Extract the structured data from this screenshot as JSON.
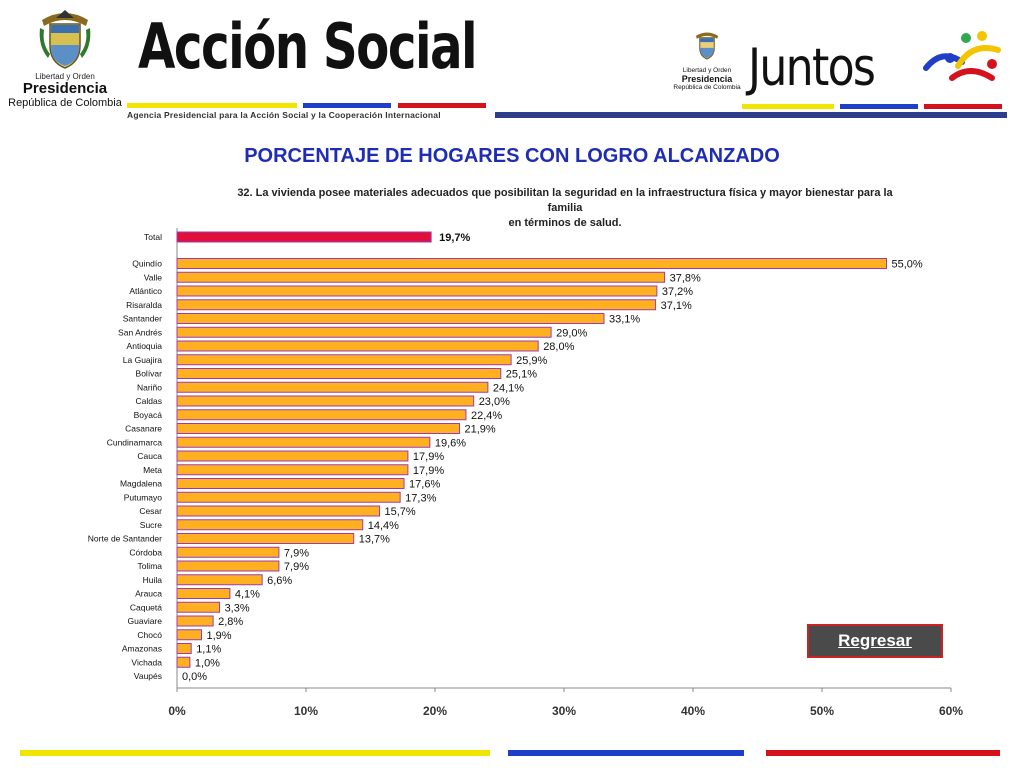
{
  "header": {
    "crest_caption": "Libertad y Orden",
    "presidencia": "Presidencia",
    "republica": "República de Colombia",
    "accion_social": "Acción Social",
    "agency_subtitle": "Agencia Presidencial para la Acción Social y la Cooperación Internacional",
    "juntos_crest_caption": "Libertad y Orden",
    "juntos_presidencia": "Presidencia",
    "juntos_republica": "República de Colombia",
    "juntos": "Juntos"
  },
  "colors": {
    "yellow": "#f2e600",
    "blue": "#1f3fc9",
    "red": "#d4121e",
    "bar_fill": "#ffb020",
    "bar_border": "#9b3db0",
    "total_fill": "#e0103a",
    "title_blue": "#1f2db5"
  },
  "page": {
    "title": "PORCENTAJE DE HOGARES CON LOGRO ALCANZADO",
    "chart_subtitle_line1": "32. La vivienda posee materiales adecuados que posibilitan la seguridad en la infraestructura física y mayor bienestar para la familia",
    "chart_subtitle_line2": "en términos de salud.",
    "regresar_label": "Regresar"
  },
  "chart_data": {
    "type": "bar",
    "orientation": "horizontal",
    "title": "32. La vivienda posee materiales adecuados que posibilitan la seguridad en la infraestructura física y mayor bienestar para la familia en términos de salud.",
    "xlim": [
      0,
      60
    ],
    "xticks": [
      "0%",
      "10%",
      "20%",
      "30%",
      "40%",
      "50%",
      "60%"
    ],
    "grid": false,
    "total": {
      "label": "Total",
      "value": 19.7,
      "value_label": "19,7%"
    },
    "categories": [
      "Quindío",
      "Valle",
      "Atlántico",
      "Risaralda",
      "Santander",
      "San Andrés",
      "Antioquia",
      "La Guajira",
      "Bolívar",
      "Nariño",
      "Caldas",
      "Boyacá",
      "Casanare",
      "Cundinamarca",
      "Cauca",
      "Meta",
      "Magdalena",
      "Putumayo",
      "Cesar",
      "Sucre",
      "Norte de Santander",
      "Córdoba",
      "Tolima",
      "Huila",
      "Arauca",
      "Caquetá",
      "Guaviare",
      "Chocó",
      "Amazonas",
      "Vichada",
      "Vaupés"
    ],
    "values": [
      55.0,
      37.8,
      37.2,
      37.1,
      33.1,
      29.0,
      28.0,
      25.9,
      25.1,
      24.1,
      23.0,
      22.4,
      21.9,
      19.6,
      17.9,
      17.9,
      17.6,
      17.3,
      15.7,
      14.4,
      13.7,
      7.9,
      7.9,
      6.6,
      4.1,
      3.3,
      2.8,
      1.9,
      1.1,
      1.0,
      0.0
    ],
    "value_labels": [
      "55,0%",
      "37,8%",
      "37,2%",
      "37,1%",
      "33,1%",
      "29,0%",
      "28,0%",
      "25,9%",
      "25,1%",
      "24,1%",
      "23,0%",
      "22,4%",
      "21,9%",
      "19,6%",
      "17,9%",
      "17,9%",
      "17,6%",
      "17,3%",
      "15,7%",
      "14,4%",
      "13,7%",
      "7,9%",
      "7,9%",
      "6,6%",
      "4,1%",
      "3,3%",
      "2,8%",
      "1,9%",
      "1,1%",
      "1,0%",
      "0,0%"
    ]
  }
}
